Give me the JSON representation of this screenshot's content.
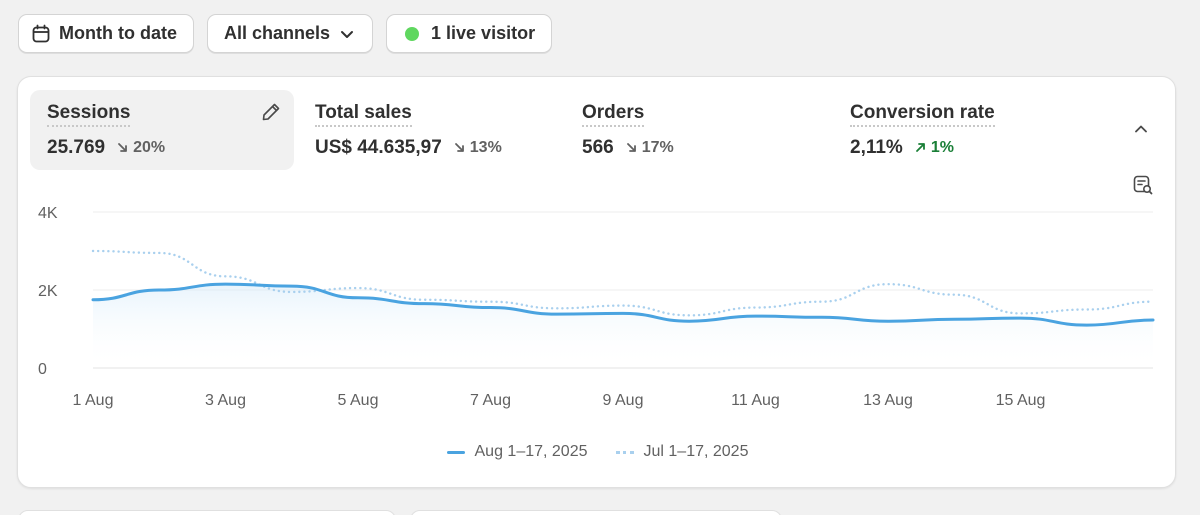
{
  "filters": {
    "date_range": "Month to date",
    "channels": "All channels",
    "live_visitors": "1 live visitor"
  },
  "metrics": [
    {
      "label": "Sessions",
      "value": "25.769",
      "change": "20%",
      "direction": "down"
    },
    {
      "label": "Total sales",
      "value": "US$ 44.635,97",
      "change": "13%",
      "direction": "down"
    },
    {
      "label": "Orders",
      "value": "566",
      "change": "17%",
      "direction": "down"
    },
    {
      "label": "Conversion rate",
      "value": "2,11%",
      "change": "1%",
      "direction": "up"
    }
  ],
  "chart_data": {
    "type": "line",
    "title": "Sessions",
    "x": [
      "1 Aug",
      "2 Aug",
      "3 Aug",
      "4 Aug",
      "5 Aug",
      "6 Aug",
      "7 Aug",
      "8 Aug",
      "9 Aug",
      "10 Aug",
      "11 Aug",
      "12 Aug",
      "13 Aug",
      "14 Aug",
      "15 Aug",
      "16 Aug",
      "17 Aug"
    ],
    "x_tick_labels": [
      "1 Aug",
      "3 Aug",
      "5 Aug",
      "7 Aug",
      "9 Aug",
      "11 Aug",
      "13 Aug",
      "15 Aug"
    ],
    "y_tick_labels": [
      "4K",
      "2K",
      "0"
    ],
    "ylim": [
      0,
      4000
    ],
    "series": [
      {
        "name": "Aug 1–17, 2025",
        "style": "solid",
        "color": "#4aa3e0",
        "values": [
          1750,
          2000,
          2150,
          2100,
          1800,
          1650,
          1550,
          1380,
          1400,
          1200,
          1330,
          1300,
          1200,
          1250,
          1280,
          1100,
          1230
        ]
      },
      {
        "name": "Jul 1–17, 2025",
        "style": "dotted",
        "color": "#a9d0ee",
        "values": [
          3000,
          2950,
          2350,
          1950,
          2050,
          1750,
          1700,
          1530,
          1600,
          1350,
          1550,
          1700,
          2150,
          1880,
          1400,
          1500,
          1700
        ]
      }
    ]
  }
}
